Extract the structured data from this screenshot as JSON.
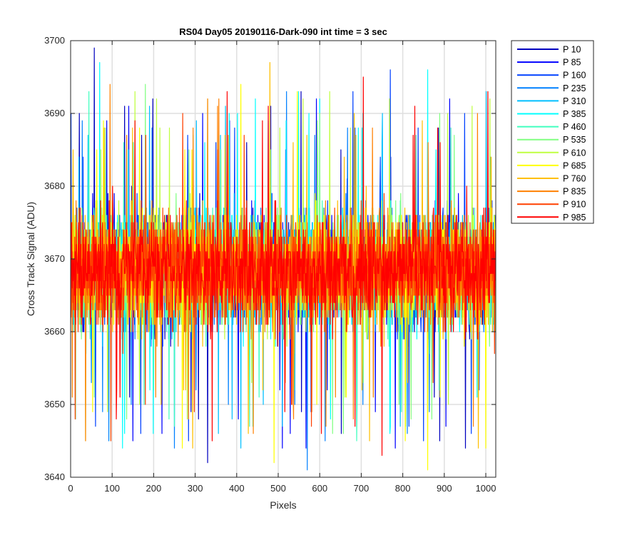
{
  "chart_data": {
    "type": "line",
    "title": "RS04 Day05 20190116-Dark-090 int time = 3 sec",
    "xlabel": "Pixels",
    "ylabel": "Cross Track Signal (ADU)",
    "xlim": [
      0,
      1024
    ],
    "ylim": [
      3640,
      3700
    ],
    "xticks": [
      0,
      100,
      200,
      300,
      400,
      500,
      600,
      700,
      800,
      900,
      1000
    ],
    "yticks": [
      3640,
      3650,
      3660,
      3670,
      3680,
      3690,
      3700
    ],
    "grid": true,
    "legend_position": "outside-right-top",
    "noise_model": {
      "n_pixels": 1024,
      "mean": 3668.5,
      "typical_range": [
        3655,
        3684
      ],
      "extreme_range": [
        3641,
        3699
      ]
    },
    "series": [
      {
        "name": "P 10",
        "color": "#0000bf",
        "annotated_points": [
          {
            "x": 57,
            "y": 3699
          },
          {
            "x": 330,
            "y": 3642
          },
          {
            "x": 130,
            "y": 3691
          },
          {
            "x": 290,
            "y": 3649
          }
        ]
      },
      {
        "name": "P 85",
        "color": "#0000ff",
        "annotated_points": [
          {
            "x": 140,
            "y": 3691
          },
          {
            "x": 150,
            "y": 3645
          },
          {
            "x": 220,
            "y": 3646
          },
          {
            "x": 510,
            "y": 3644
          }
        ]
      },
      {
        "name": "P 160",
        "color": "#0040ff",
        "annotated_points": [
          {
            "x": 60,
            "y": 3647
          },
          {
            "x": 680,
            "y": 3693
          },
          {
            "x": 770,
            "y": 3696
          }
        ]
      },
      {
        "name": "P 235",
        "color": "#0080ff",
        "annotated_points": [
          {
            "x": 520,
            "y": 3693
          },
          {
            "x": 570,
            "y": 3641
          }
        ]
      },
      {
        "name": "P 310",
        "color": "#00bfff",
        "annotated_points": [
          {
            "x": 20,
            "y": 3684
          },
          {
            "x": 410,
            "y": 3644
          }
        ]
      },
      {
        "name": "P 385",
        "color": "#00ffff",
        "annotated_points": [
          {
            "x": 70,
            "y": 3697
          },
          {
            "x": 130,
            "y": 3646
          },
          {
            "x": 860,
            "y": 3696
          }
        ]
      },
      {
        "name": "P 460",
        "color": "#40ffbf",
        "annotated_points": [
          {
            "x": 200,
            "y": 3652
          }
        ]
      },
      {
        "name": "P 535",
        "color": "#80ff80",
        "annotated_points": [
          {
            "x": 180,
            "y": 3694
          },
          {
            "x": 870,
            "y": 3648
          }
        ]
      },
      {
        "name": "P 610",
        "color": "#bfff40",
        "annotated_points": [
          {
            "x": 330,
            "y": 3692
          },
          {
            "x": 560,
            "y": 3692
          },
          {
            "x": 1010,
            "y": 3692
          }
        ]
      },
      {
        "name": "P 685",
        "color": "#ffff00",
        "annotated_points": [
          {
            "x": 410,
            "y": 3694
          },
          {
            "x": 490,
            "y": 3642
          },
          {
            "x": 860,
            "y": 3641
          },
          {
            "x": 1000,
            "y": 3644
          }
        ]
      },
      {
        "name": "P 760",
        "color": "#ffbf00",
        "annotated_points": [
          {
            "x": 480,
            "y": 3697
          },
          {
            "x": 720,
            "y": 3645
          }
        ]
      },
      {
        "name": "P 835",
        "color": "#ff8000",
        "annotated_points": [
          {
            "x": 95,
            "y": 3694
          },
          {
            "x": 440,
            "y": 3646
          },
          {
            "x": 970,
            "y": 3647
          }
        ]
      },
      {
        "name": "P 910",
        "color": "#ff4000",
        "annotated_points": [
          {
            "x": 270,
            "y": 3690
          },
          {
            "x": 580,
            "y": 3647
          }
        ]
      },
      {
        "name": "P 985",
        "color": "#ff0000",
        "annotated_points": [
          {
            "x": 705,
            "y": 3695
          },
          {
            "x": 750,
            "y": 3643
          },
          {
            "x": 110,
            "y": 3648
          }
        ]
      }
    ]
  }
}
